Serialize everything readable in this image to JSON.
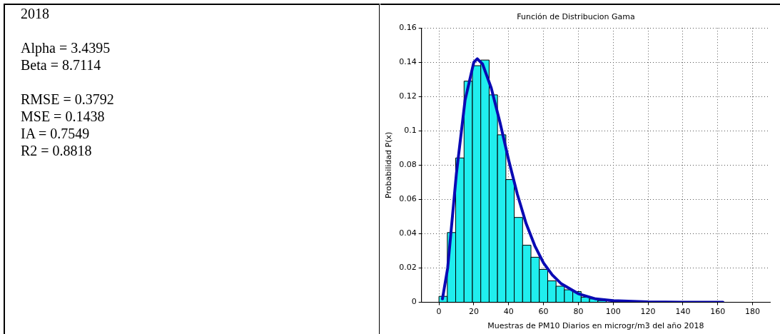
{
  "chart_data": {
    "type": "histogram",
    "title": "Función de Distribucion Gama",
    "xlabel": "Muestras de PM10 Diarios en microgr/m3 del año 2018",
    "ylabel": "Probabilidad P(x)",
    "annotations": [
      "2018",
      "Alpha = 3.4395",
      "Beta = 8.7114",
      "RMSE = 0.3792",
      "MSE = 0.1438",
      "IA = 0.7549",
      "R2 = 0.8818"
    ],
    "bins": [
      0,
      4.8,
      9.6,
      14.4,
      19.2,
      24,
      28.8,
      33.6,
      38.4,
      43.2,
      48,
      52.8,
      57.6,
      62.4,
      67.2,
      72,
      76.8,
      81.6,
      86.4,
      91.2,
      96
    ],
    "values": [
      0.0035,
      0.0407,
      0.0842,
      0.129,
      0.138,
      0.1413,
      0.121,
      0.0977,
      0.0716,
      0.0495,
      0.0333,
      0.0263,
      0.0192,
      0.0125,
      0.0094,
      0.0073,
      0.0063,
      0.003,
      0.002,
      0.001
    ],
    "color": "#20eeee",
    "series": [
      {
        "type": "line",
        "color": "#0a0ab4",
        "x": [
          2,
          5,
          10,
          15,
          20,
          22,
          25,
          30,
          35,
          40,
          45,
          50,
          55,
          60,
          65,
          70,
          80,
          90,
          100,
          120,
          140,
          163
        ],
        "values": [
          0.002,
          0.02,
          0.075,
          0.118,
          0.14,
          0.142,
          0.139,
          0.125,
          0.105,
          0.083,
          0.063,
          0.046,
          0.033,
          0.023,
          0.016,
          0.011,
          0.005,
          0.002,
          0.001,
          0.0002,
          0,
          0
        ]
      }
    ],
    "xlim": [
      -10,
      190
    ],
    "xticks": [
      0,
      20,
      40,
      60,
      80,
      100,
      120,
      140,
      160,
      180
    ],
    "ylim": [
      0,
      0.16
    ],
    "yticks": [
      0,
      0.02,
      0.04,
      0.06,
      0.08,
      0.1,
      0.12,
      0.14,
      0.16
    ],
    "grid": true,
    "legend": false
  }
}
